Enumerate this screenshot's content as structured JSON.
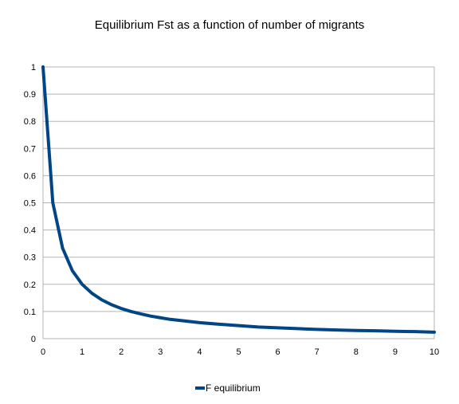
{
  "chart_data": {
    "type": "line",
    "title": "Equilibrium Fst as a function of number of migrants",
    "xlabel": "",
    "ylabel": "",
    "xlim": [
      0,
      10
    ],
    "ylim": [
      0,
      1
    ],
    "x_ticks": [
      0,
      1,
      2,
      3,
      4,
      5,
      6,
      7,
      8,
      9,
      10
    ],
    "y_ticks": [
      0,
      0.1,
      0.2,
      0.3,
      0.4,
      0.5,
      0.6,
      0.7,
      0.8,
      0.9,
      1
    ],
    "grid": true,
    "legend_position": "bottom",
    "series": [
      {
        "name": "F equilibrium",
        "color": "#004586",
        "x": [
          0,
          0.25,
          0.5,
          0.75,
          1,
          1.25,
          1.5,
          1.75,
          2,
          2.25,
          2.5,
          2.75,
          3,
          3.25,
          3.5,
          3.75,
          4,
          4.5,
          5,
          5.5,
          6,
          6.5,
          7,
          7.5,
          8,
          8.5,
          9,
          9.5,
          10
        ],
        "y": [
          1,
          0.5,
          0.333,
          0.25,
          0.2,
          0.167,
          0.143,
          0.125,
          0.111,
          0.1,
          0.091,
          0.083,
          0.077,
          0.071,
          0.067,
          0.063,
          0.059,
          0.053,
          0.048,
          0.043,
          0.04,
          0.037,
          0.034,
          0.032,
          0.03,
          0.029,
          0.027,
          0.026,
          0.024
        ]
      }
    ]
  }
}
